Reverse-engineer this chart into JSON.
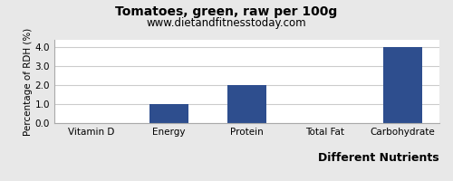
{
  "title": "Tomatoes, green, raw per 100g",
  "subtitle": "www.dietandfitnesstoday.com",
  "categories": [
    "Vitamin D",
    "Energy",
    "Protein",
    "Total Fat",
    "Carbohydrate"
  ],
  "values": [
    0.0,
    1.0,
    2.0,
    0.0,
    4.0
  ],
  "bar_color": "#2e4e8e",
  "xlabel": "Different Nutrients",
  "ylabel": "Percentage of RDH (%)",
  "ylim": [
    0,
    4.4
  ],
  "yticks": [
    0.0,
    1.0,
    2.0,
    3.0,
    4.0
  ],
  "background_color": "#e8e8e8",
  "plot_background": "#ffffff",
  "title_fontsize": 10,
  "subtitle_fontsize": 8.5,
  "xlabel_fontsize": 9,
  "ylabel_fontsize": 7.5,
  "tick_fontsize": 7.5,
  "bar_width": 0.5
}
